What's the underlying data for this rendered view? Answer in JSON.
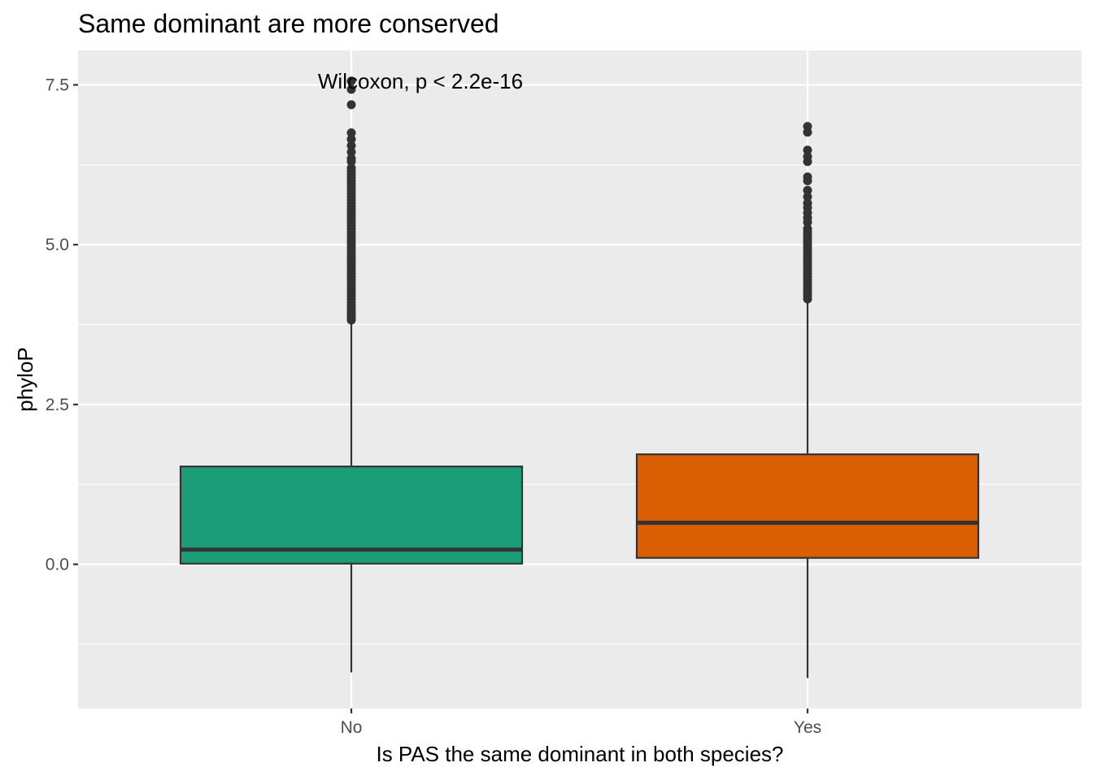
{
  "chart_data": {
    "type": "boxplot",
    "title": "Same dominant are more conserved",
    "xlabel": "Is PAS the same dominant in both species?",
    "ylabel": "phyloP",
    "annotation": "Wilcoxon, p < 2.2e-16",
    "ylim": [
      -2.25,
      8.05
    ],
    "yticks": [
      0.0,
      2.5,
      5.0,
      7.5
    ],
    "ytick_labels": [
      "0.0",
      "2.5",
      "5.0",
      "7.5"
    ],
    "grid": true,
    "legend": "none",
    "categories": [
      "No",
      "Yes"
    ],
    "boxes": [
      {
        "category": "No",
        "color": "#1b9e77",
        "whisker_low": -1.69,
        "q1": 0.01,
        "median": 0.23,
        "q3": 1.53,
        "whisker_high": 3.81,
        "outliers": [
          3.82,
          3.85,
          3.88,
          3.92,
          3.96,
          4.0,
          4.05,
          4.1,
          4.15,
          4.2,
          4.25,
          4.3,
          4.35,
          4.4,
          4.45,
          4.5,
          4.55,
          4.6,
          4.65,
          4.7,
          4.75,
          4.8,
          4.85,
          4.9,
          4.95,
          5.0,
          5.05,
          5.1,
          5.15,
          5.2,
          5.25,
          5.3,
          5.35,
          5.4,
          5.45,
          5.5,
          5.55,
          5.6,
          5.65,
          5.7,
          5.75,
          5.8,
          5.85,
          5.9,
          5.95,
          6.0,
          6.05,
          6.1,
          6.15,
          6.2,
          6.3,
          6.35,
          6.45,
          6.55,
          6.65,
          6.75,
          7.19,
          7.43,
          7.56
        ]
      },
      {
        "category": "Yes",
        "color": "#d95f02",
        "whisker_low": -1.78,
        "q1": 0.1,
        "median": 0.65,
        "q3": 1.72,
        "whisker_high": 4.13,
        "outliers": [
          4.15,
          4.2,
          4.25,
          4.3,
          4.35,
          4.4,
          4.45,
          4.5,
          4.55,
          4.6,
          4.65,
          4.7,
          4.75,
          4.8,
          4.85,
          4.9,
          4.95,
          5.0,
          5.05,
          5.1,
          5.15,
          5.2,
          5.25,
          5.35,
          5.42,
          5.5,
          5.58,
          5.65,
          5.75,
          5.85,
          6.0,
          6.06,
          6.3,
          6.38,
          6.48,
          6.76,
          6.85
        ]
      }
    ]
  }
}
